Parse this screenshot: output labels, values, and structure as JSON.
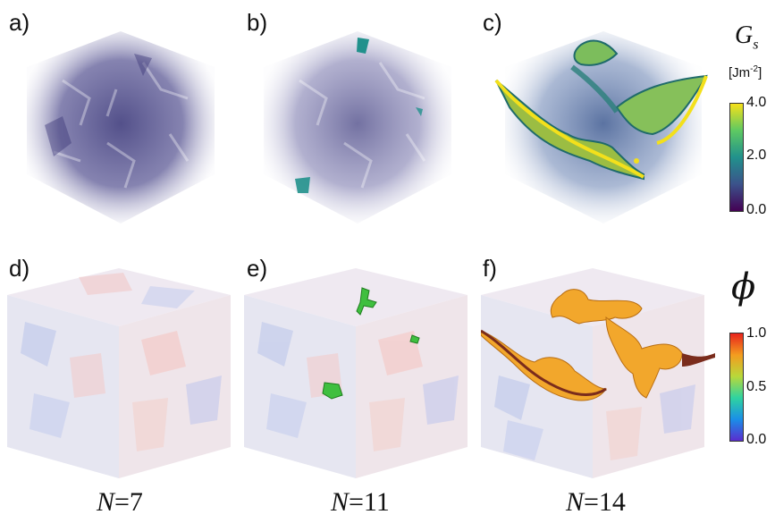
{
  "panels": [
    {
      "label": "a)"
    },
    {
      "label": "b)"
    },
    {
      "label": "c)"
    },
    {
      "label": "d)"
    },
    {
      "label": "e)"
    },
    {
      "label": "f)"
    }
  ],
  "columns": [
    {
      "n_symbol": "N",
      "n_value": "=7"
    },
    {
      "n_symbol": "N",
      "n_value": "=11"
    },
    {
      "n_symbol": "N",
      "n_value": "=14"
    }
  ],
  "colorbar_gs": {
    "symbol": "G",
    "subscript": "s",
    "unit": "[Jm",
    "unit_exp": "-2",
    "unit_close": "]",
    "ticks": [
      "4.0",
      "2.0",
      "0.0"
    ],
    "colors": [
      "#f7e11a",
      "#5ec962",
      "#21918c",
      "#3b528b",
      "#440154"
    ]
  },
  "colorbar_phi": {
    "symbol": "ϕ",
    "ticks": [
      "1.0",
      "0.5",
      "0.0"
    ],
    "colors": [
      "#e8231c",
      "#f39c1f",
      "#b9d83a",
      "#2fd3a0",
      "#1a8fe8",
      "#5a2dcf"
    ]
  }
}
